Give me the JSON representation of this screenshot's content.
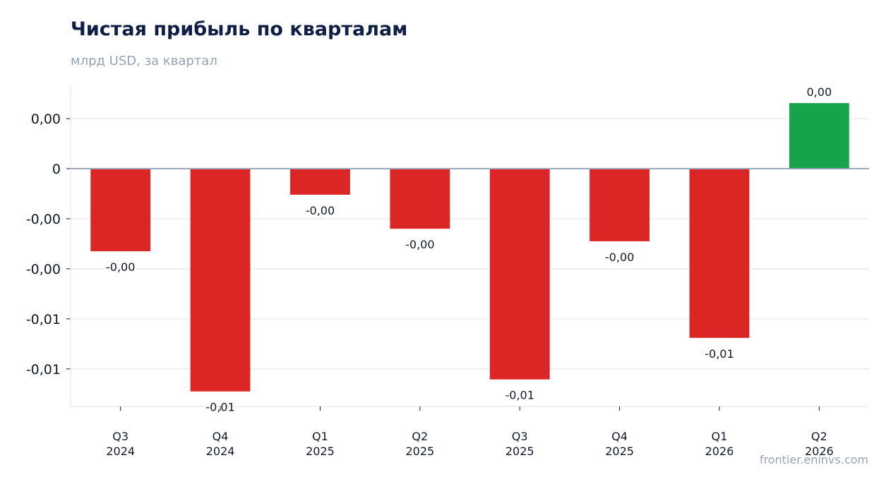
{
  "chart_data": {
    "type": "bar",
    "title": "Чистая прибыль по кварталам",
    "subtitle": "млрд USD, за квартал",
    "categories": [
      [
        "Q3",
        "2024"
      ],
      [
        "Q4",
        "2024"
      ],
      [
        "Q1",
        "2025"
      ],
      [
        "Q2",
        "2025"
      ],
      [
        "Q3",
        "2025"
      ],
      [
        "Q4",
        "2025"
      ],
      [
        "Q1",
        "2026"
      ],
      [
        "Q2",
        "2026"
      ]
    ],
    "values": [
      -0.0033,
      -0.0089,
      -0.00104,
      -0.0024,
      -0.00842,
      -0.0029,
      -0.00676,
      0.00262
    ],
    "data_labels": [
      "-0,00",
      "-0,01",
      "-0,00",
      "-0,00",
      "-0,01",
      "-0,00",
      "-0,01",
      "0,00"
    ],
    "yticks": [
      {
        "value": 0.002,
        "label": "0,00"
      },
      {
        "value": 0,
        "label": "0"
      },
      {
        "value": -0.002,
        "label": "-0,00"
      },
      {
        "value": -0.004,
        "label": "-0,00"
      },
      {
        "value": -0.006,
        "label": "-0,01"
      },
      {
        "value": -0.008,
        "label": "-0,01"
      }
    ],
    "ylim": [
      -0.0095,
      0.0033
    ],
    "grid": true,
    "colors": {
      "negative": "#dc2626",
      "positive": "#16a34a",
      "grid": "#e5e7eb",
      "zero_line": "#94a3b8",
      "axis": "#e5e7eb"
    }
  },
  "watermark": "frontier.eninvs.com"
}
